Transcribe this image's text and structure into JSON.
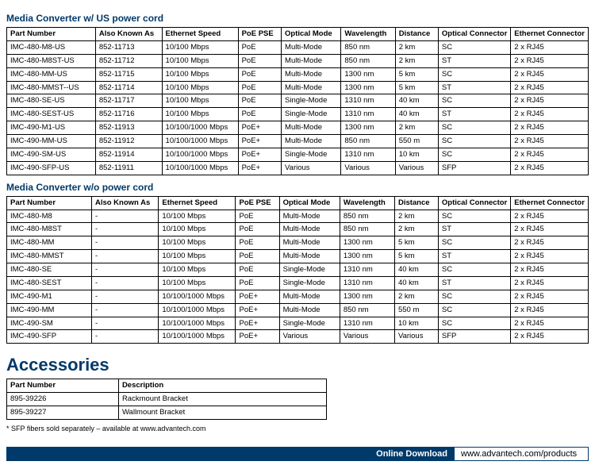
{
  "section1": {
    "title": "Media Converter w/ US power cord",
    "columns": [
      "Part Number",
      "Also Known As",
      "Ethernet Speed",
      "PoE PSE",
      "Optical Mode",
      "Wavelength",
      "Distance",
      "Optical Connector",
      "Ethernet Connector"
    ],
    "rows": [
      [
        "IMC-480-M8-US",
        "852-11713",
        "10/100 Mbps",
        "PoE",
        "Multi-Mode",
        "850 nm",
        "2 km",
        "SC",
        "2 x RJ45"
      ],
      [
        "IMC-480-M8ST-US",
        "852-11712",
        "10/100 Mbps",
        "PoE",
        "Multi-Mode",
        "850 nm",
        "2 km",
        "ST",
        "2 x RJ45"
      ],
      [
        "IMC-480-MM-US",
        "852-11715",
        "10/100 Mbps",
        "PoE",
        "Multi-Mode",
        "1300 nm",
        "5 km",
        "SC",
        "2 x RJ45"
      ],
      [
        "IMC-480-MMST--US",
        "852-11714",
        "10/100 Mbps",
        "PoE",
        "Multi-Mode",
        "1300 nm",
        "5 km",
        "ST",
        "2 x RJ45"
      ],
      [
        "IMC-480-SE-US",
        "852-11717",
        "10/100 Mbps",
        "PoE",
        "Single-Mode",
        "1310 nm",
        "40 km",
        "SC",
        "2 x RJ45"
      ],
      [
        "IMC-480-SEST-US",
        "852-11716",
        "10/100 Mbps",
        "PoE",
        "Single-Mode",
        "1310 nm",
        "40 km",
        "ST",
        "2 x RJ45"
      ],
      [
        "IMC-490-M1-US",
        "852-11913",
        "10/100/1000 Mbps",
        "PoE+",
        "Multi-Mode",
        "1300 nm",
        "2 km",
        "SC",
        "2 x RJ45"
      ],
      [
        "IMC-490-MM-US",
        "852-11912",
        "10/100/1000 Mbps",
        "PoE+",
        "Multi-Mode",
        "850 nm",
        "550 m",
        "SC",
        "2 x RJ45"
      ],
      [
        "IMC-490-SM-US",
        "852-11914",
        "10/100/1000 Mbps",
        "PoE+",
        "Single-Mode",
        "1310 nm",
        "10 km",
        "SC",
        "2 x RJ45"
      ],
      [
        "IMC-490-SFP-US",
        "852-11911",
        "10/100/1000 Mbps",
        "PoE+",
        "Various",
        "Various",
        "Various",
        "SFP",
        "2 x RJ45"
      ]
    ]
  },
  "section2": {
    "title": "Media Converter w/o power cord",
    "columns": [
      "Part Number",
      "Also Known As",
      "Ethernet Speed",
      "PoE PSE",
      "Optical Mode",
      "Wavelength",
      "Distance",
      "Optical Connector",
      "Ethernet Connector"
    ],
    "rows": [
      [
        "IMC-480-M8",
        "-",
        "10/100 Mbps",
        "PoE",
        "Multi-Mode",
        "850 nm",
        "2 km",
        "SC",
        "2 x RJ45"
      ],
      [
        "IMC-480-M8ST",
        "-",
        "10/100 Mbps",
        "PoE",
        "Multi-Mode",
        "850 nm",
        "2 km",
        "ST",
        "2 x RJ45"
      ],
      [
        "IMC-480-MM",
        "-",
        "10/100 Mbps",
        "PoE",
        "Multi-Mode",
        "1300 nm",
        "5 km",
        "SC",
        "2 x RJ45"
      ],
      [
        "IMC-480-MMST",
        "-",
        "10/100 Mbps",
        "PoE",
        "Multi-Mode",
        "1300 nm",
        "5 km",
        "ST",
        "2 x RJ45"
      ],
      [
        "IMC-480-SE",
        "-",
        "10/100 Mbps",
        "PoE",
        "Single-Mode",
        "1310 nm",
        "40 km",
        "SC",
        "2 x RJ45"
      ],
      [
        "IMC-480-SEST",
        "-",
        "10/100 Mbps",
        "PoE",
        "Single-Mode",
        "1310 nm",
        "40 km",
        "ST",
        "2 x RJ45"
      ],
      [
        "IMC-490-M1",
        "-",
        "10/100/1000 Mbps",
        "PoE+",
        "Multi-Mode",
        "1300 nm",
        "2 km",
        "SC",
        "2 x RJ45"
      ],
      [
        "IMC-490-MM",
        "-",
        "10/100/1000 Mbps",
        "PoE+",
        "Multi-Mode",
        "850 nm",
        "550 m",
        "SC",
        "2 x RJ45"
      ],
      [
        "IMC-490-SM",
        "-",
        "10/100/1000 Mbps",
        "PoE+",
        "Single-Mode",
        "1310 nm",
        "10 km",
        "SC",
        "2 x RJ45"
      ],
      [
        "IMC-490-SFP",
        "-",
        "10/100/1000 Mbps",
        "PoE+",
        "Various",
        "Various",
        "Various",
        "SFP",
        "2 x RJ45"
      ]
    ]
  },
  "accessories": {
    "title": "Accessories",
    "columns": [
      "Part Number",
      "Description"
    ],
    "rows": [
      [
        "895-39226",
        "Rackmount Bracket"
      ],
      [
        "895-39227",
        "Wallmount Bracket"
      ]
    ]
  },
  "footnote": "* SFP fibers sold separately – available at www.advantech.com",
  "download": {
    "label": "Online Download",
    "url": "www.advantech.com/products"
  },
  "colors": {
    "brand": "#003a6a",
    "text": "#000000",
    "bg": "#ffffff",
    "border": "#000000"
  },
  "col_widths_main_pct": [
    17,
    12,
    14,
    8,
    11,
    10,
    8,
    10,
    10
  ],
  "col_widths_acc_pct": [
    35,
    65
  ]
}
